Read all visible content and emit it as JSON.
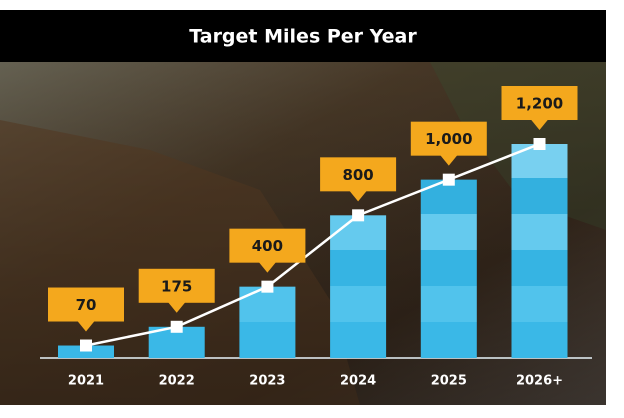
{
  "chart_data": {
    "type": "bar",
    "title": "Target Miles Per Year",
    "categories": [
      "2021",
      "2022",
      "2023",
      "2024",
      "2025",
      "2026+"
    ],
    "values": [
      70,
      175,
      400,
      800,
      1000,
      1200
    ],
    "value_labels": [
      "70",
      "175",
      "400",
      "800",
      "1,000",
      "1,200"
    ],
    "color": "#3cbcea",
    "line_color": "#ffffff",
    "label_color": "#f4a81d"
  }
}
